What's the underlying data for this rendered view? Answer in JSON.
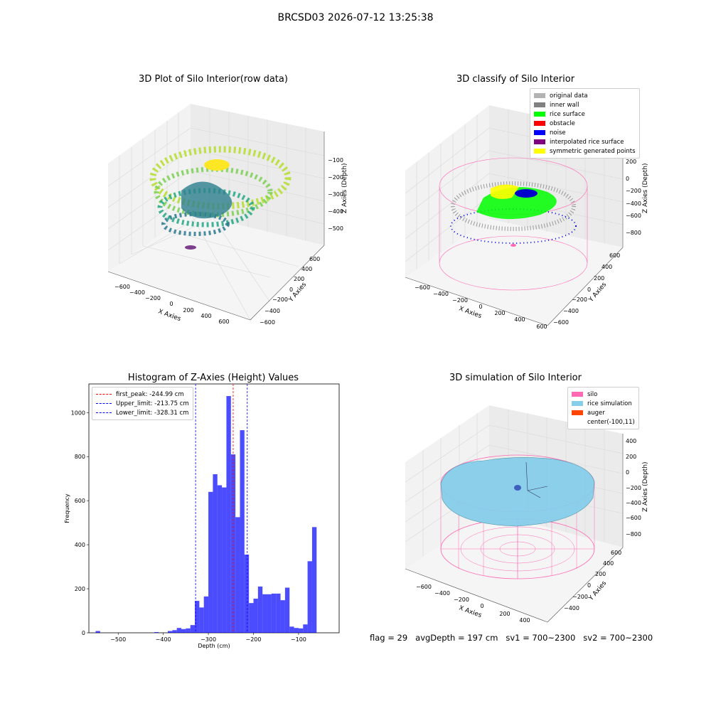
{
  "figure_title": "BRCSD03 2026-07-12 13:25:38",
  "footer": {
    "flag": "flag = 29",
    "avg_depth": "avgDepth = 197 cm",
    "sv1": "sv1 = 700~2300",
    "sv2": "sv2 = 700~2300"
  },
  "chart_data": [
    {
      "type": "scatter",
      "subtype": "3d",
      "title": "3D Plot of Silo Interior(row data)",
      "xlabel": "X Axies",
      "ylabel": "Y Axies",
      "zlabel": "Z Axies (Depth)",
      "x_ticks": [
        "−600",
        "−400",
        "−200",
        "0",
        "200",
        "400",
        "600"
      ],
      "y_ticks": [
        "−600",
        "−400",
        "−200",
        "0",
        "200",
        "400",
        "600"
      ],
      "z_ticks": [
        "−500",
        "−400",
        "−300",
        "−200",
        "−100"
      ],
      "colormap": "viridis"
    },
    {
      "type": "scatter",
      "subtype": "3d",
      "title": "3D classify of Silo Interior",
      "xlabel": "X Axies",
      "ylabel": "Y Axies",
      "zlabel": "Z Axies (Depth)",
      "x_ticks": [
        "−600",
        "−400",
        "−200",
        "0",
        "200",
        "400",
        "600"
      ],
      "y_ticks": [
        "−600",
        "−400",
        "−200",
        "0",
        "200",
        "400",
        "600"
      ],
      "z_ticks": [
        "−800",
        "−600",
        "−400",
        "−200",
        "0",
        "200"
      ],
      "legend_position": "top-right",
      "legend": [
        {
          "label": "original data",
          "color": "#b3b3b3"
        },
        {
          "label": "inner wall",
          "color": "#808080"
        },
        {
          "label": "rice surface",
          "color": "#00ff00"
        },
        {
          "label": "obstacle",
          "color": "#ff0000"
        },
        {
          "label": "noise",
          "color": "#0000ff"
        },
        {
          "label": "interpolated rice surface",
          "color": "#800080"
        },
        {
          "label": "symmetric generated points",
          "color": "#ffff00"
        }
      ]
    },
    {
      "type": "bar",
      "subtype": "histogram",
      "title": "Histogram of Z-Axies (Height) Values",
      "xlabel": "Depth (cm)",
      "ylabel": "Frequency",
      "xlim": [
        -565,
        -10
      ],
      "ylim": [
        0,
        1130
      ],
      "x_ticks": [
        -500,
        -400,
        -300,
        -200,
        -100
      ],
      "x_tick_labels": [
        "−500",
        "−400",
        "−300",
        "−200",
        "−100"
      ],
      "y_ticks": [
        0,
        200,
        400,
        600,
        800,
        1000
      ],
      "bar_color": "#0000ff",
      "bins": [
        {
          "start": -550,
          "end": -540,
          "value": 8
        },
        {
          "start": -420,
          "end": -410,
          "value": 3
        },
        {
          "start": -390,
          "end": -380,
          "value": 8
        },
        {
          "start": -380,
          "end": -370,
          "value": 12
        },
        {
          "start": -370,
          "end": -360,
          "value": 22
        },
        {
          "start": -360,
          "end": -350,
          "value": 17
        },
        {
          "start": -350,
          "end": -340,
          "value": 20
        },
        {
          "start": -340,
          "end": -330,
          "value": 35
        },
        {
          "start": -330,
          "end": -320,
          "value": 145
        },
        {
          "start": -320,
          "end": -310,
          "value": 115
        },
        {
          "start": -310,
          "end": -300,
          "value": 165
        },
        {
          "start": -300,
          "end": -290,
          "value": 640
        },
        {
          "start": -290,
          "end": -280,
          "value": 720
        },
        {
          "start": -280,
          "end": -270,
          "value": 670
        },
        {
          "start": -270,
          "end": -260,
          "value": 660
        },
        {
          "start": -260,
          "end": -250,
          "value": 1075
        },
        {
          "start": -250,
          "end": -240,
          "value": 810
        },
        {
          "start": -240,
          "end": -230,
          "value": 525
        },
        {
          "start": -230,
          "end": -220,
          "value": 920
        },
        {
          "start": -220,
          "end": -210,
          "value": 355
        },
        {
          "start": -210,
          "end": -200,
          "value": 135
        },
        {
          "start": -200,
          "end": -190,
          "value": 155
        },
        {
          "start": -190,
          "end": -180,
          "value": 210
        },
        {
          "start": -180,
          "end": -170,
          "value": 175
        },
        {
          "start": -170,
          "end": -160,
          "value": 175
        },
        {
          "start": -160,
          "end": -150,
          "value": 178
        },
        {
          "start": -150,
          "end": -140,
          "value": 178
        },
        {
          "start": -140,
          "end": -130,
          "value": 148
        },
        {
          "start": -130,
          "end": -120,
          "value": 205
        },
        {
          "start": -120,
          "end": -110,
          "value": 28
        },
        {
          "start": -110,
          "end": -100,
          "value": 22
        },
        {
          "start": -100,
          "end": -90,
          "value": 20
        },
        {
          "start": -90,
          "end": -80,
          "value": 38
        },
        {
          "start": -80,
          "end": -70,
          "value": 325
        },
        {
          "start": -70,
          "end": -60,
          "value": 480
        }
      ],
      "vlines": [
        {
          "label": "first_peak: -244.99 cm",
          "x": -244.99,
          "color": "#ff0000"
        },
        {
          "label": "Upper_limit: -213.75 cm",
          "x": -213.75,
          "color": "#0000ff"
        },
        {
          "label": "Lower_limit: -328.31 cm",
          "x": -328.31,
          "color": "#0000ff"
        }
      ],
      "legend_position": "top-left"
    },
    {
      "type": "surface",
      "subtype": "3d",
      "title": "3D simulation of Silo Interior",
      "xlabel": "X Axies",
      "ylabel": "Y Axies",
      "zlabel": "Z Axies (Depth)",
      "x_ticks": [
        "−600",
        "−400",
        "−200",
        "0",
        "200",
        "400"
      ],
      "y_ticks": [
        "−400",
        "−200",
        "0",
        "200",
        "400",
        "600"
      ],
      "z_ticks": [
        "−800",
        "−600",
        "−400",
        "−200",
        "0",
        "200",
        "400"
      ],
      "legend_position": "top-right",
      "legend": [
        {
          "label": "silo",
          "color": "#ff69b4"
        },
        {
          "label": "rice simulation",
          "color": "#87ceeb"
        },
        {
          "label": "auger",
          "color": "#ff4500"
        },
        {
          "label": "center(-100,11)",
          "color": "#ffffff"
        }
      ]
    }
  ]
}
